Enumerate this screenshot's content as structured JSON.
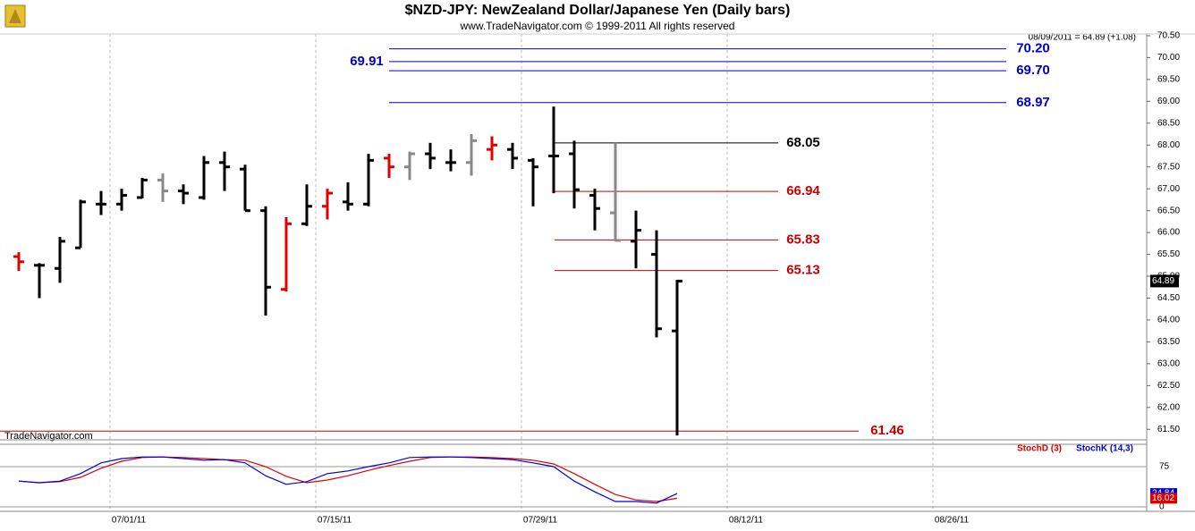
{
  "chart_data": [
    {
      "type": "ohlc",
      "title": "$NZD-JPY:  NewZealand Dollar/Japanese Yen  (Daily bars)",
      "subtitle": "www.TradeNavigator.com © 1999-2011 All rights reserved",
      "last_quote": "08/09/2011 = 64.89 (+1.08)",
      "watermark": "TradeNavigator.com",
      "x": [
        "06/24/11",
        "06/27/11",
        "06/28/11",
        "06/29/11",
        "06/30/11",
        "07/01/11",
        "07/04/11",
        "07/05/11",
        "07/06/11",
        "07/07/11",
        "07/08/11",
        "07/11/11",
        "07/12/11",
        "07/13/11",
        "07/14/11",
        "07/15/11",
        "07/18/11",
        "07/19/11",
        "07/20/11",
        "07/21/11",
        "07/22/11",
        "07/25/11",
        "07/26/11",
        "07/27/11",
        "07/28/11",
        "07/29/11",
        "08/01/11",
        "08/02/11",
        "08/03/11",
        "08/04/11",
        "08/05/11",
        "08/08/11",
        "08/09/11"
      ],
      "open": [
        65.45,
        65.25,
        65.18,
        65.65,
        66.65,
        66.65,
        66.8,
        67.2,
        66.95,
        66.8,
        67.6,
        67.45,
        66.5,
        64.7,
        66.2,
        66.6,
        66.7,
        66.65,
        67.7,
        67.5,
        67.8,
        67.6,
        67.6,
        67.9,
        67.9,
        67.65,
        67.75,
        67.8,
        66.85,
        66.45,
        65.8,
        65.5,
        63.75
      ],
      "high": [
        65.55,
        65.3,
        65.9,
        66.75,
        66.95,
        67.0,
        67.25,
        67.35,
        67.1,
        67.75,
        67.85,
        67.55,
        66.6,
        66.35,
        67.1,
        67.0,
        67.15,
        67.8,
        67.8,
        67.85,
        68.05,
        67.9,
        68.25,
        68.2,
        68.05,
        67.7,
        68.88,
        68.1,
        67.0,
        68.05,
        66.5,
        66.05,
        64.92
      ],
      "low": [
        65.12,
        64.5,
        64.85,
        65.65,
        66.4,
        66.5,
        66.78,
        66.7,
        66.65,
        66.75,
        66.95,
        66.5,
        64.1,
        64.65,
        66.15,
        66.3,
        66.5,
        66.6,
        67.25,
        67.2,
        67.45,
        67.4,
        67.3,
        67.65,
        67.45,
        66.6,
        66.9,
        66.55,
        66.05,
        65.8,
        65.18,
        63.6,
        61.36
      ],
      "close": [
        65.33,
        65.25,
        65.8,
        66.7,
        66.65,
        66.85,
        67.2,
        66.95,
        66.9,
        67.6,
        67.5,
        66.5,
        64.75,
        66.2,
        66.6,
        66.9,
        66.65,
        67.65,
        67.5,
        67.8,
        67.7,
        67.6,
        68.1,
        68.0,
        67.7,
        67.5,
        67.75,
        66.98,
        66.55,
        65.82,
        66.05,
        63.8,
        64.89
      ],
      "bar_colors": [
        "#e00000",
        "#000000",
        "#000000",
        "#000000",
        "#000000",
        "#000000",
        "#000000",
        "#888888",
        "#000000",
        "#000000",
        "#000000",
        "#000000",
        "#000000",
        "#e00000",
        "#000000",
        "#e00000",
        "#000000",
        "#000000",
        "#e00000",
        "#888888",
        "#000000",
        "#000000",
        "#888888",
        "#e00000",
        "#000000",
        "#000000",
        "#000000",
        "#000000",
        "#000000",
        "#888888",
        "#000000",
        "#000000",
        "#000000"
      ],
      "levels": {
        "values": [
          70.2,
          69.91,
          69.7,
          68.97,
          68.05,
          66.94,
          65.83,
          65.13,
          61.46
        ],
        "value_labels": [
          "70.20",
          "69.91",
          "69.70",
          "68.97",
          "68.05",
          "66.94",
          "65.83",
          "65.13",
          "61.46"
        ],
        "colors": [
          "#0000cc",
          "#0000cc",
          "#0000cc",
          "#0000cc",
          "#000000",
          "#cc0000",
          "#cc0000",
          "#cc0000",
          "#cc0000"
        ]
      },
      "ylim": [
        61.26,
        70.54
      ],
      "yticks": [
        {
          "value": 61.5,
          "label": "61.50"
        },
        {
          "value": 62,
          "label": "62.00"
        },
        {
          "value": 62.5,
          "label": "62.50"
        },
        {
          "value": 63,
          "label": "63.00"
        },
        {
          "value": 63.5,
          "label": "63.50"
        },
        {
          "value": 64,
          "label": "64.00"
        },
        {
          "value": 64.5,
          "label": "64.50"
        },
        {
          "value": 65,
          "label": "65.00"
        },
        {
          "value": 65.5,
          "label": "65.50"
        },
        {
          "value": 66,
          "label": "66.00"
        },
        {
          "value": 66.5,
          "label": "66.50"
        },
        {
          "value": 67,
          "label": "67.00"
        },
        {
          "value": 67.5,
          "label": "67.50"
        },
        {
          "value": 68,
          "label": "68.00"
        },
        {
          "value": 68.5,
          "label": "68.50"
        },
        {
          "value": 69,
          "label": "69.00"
        },
        {
          "value": 69.5,
          "label": "69.50"
        },
        {
          "value": 70,
          "label": "70.00"
        },
        {
          "value": 70.5,
          "label": "70.50"
        }
      ],
      "xticks": [
        "07/01/11",
        "07/15/11",
        "07/29/11",
        "08/12/11",
        "08/26/11"
      ]
    },
    {
      "type": "line",
      "series": [
        {
          "name": "StochD (3)",
          "color": "#dd0000",
          "values": [
            48,
            45,
            47,
            55,
            72,
            85,
            92,
            93,
            92,
            90,
            88,
            87,
            75,
            57,
            45,
            50,
            58,
            68,
            77,
            85,
            92,
            93,
            93,
            92,
            90,
            87,
            80,
            62,
            42,
            23,
            13,
            10,
            16.02
          ]
        },
        {
          "name": "StochK (14,3)",
          "color": "#0000dd",
          "values": [
            48,
            45,
            48,
            62,
            82,
            90,
            93,
            93,
            90,
            87,
            88,
            82,
            58,
            42,
            47,
            62,
            67,
            75,
            82,
            92,
            93,
            93,
            92,
            90,
            88,
            82,
            75,
            48,
            28,
            10,
            10,
            7,
            24.84
          ]
        }
      ],
      "ylim": [
        0,
        100
      ],
      "yticks": [
        0,
        75
      ]
    }
  ]
}
